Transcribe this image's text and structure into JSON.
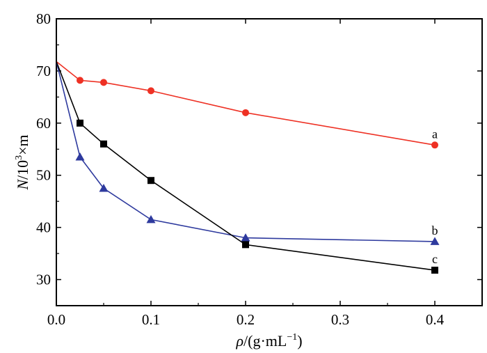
{
  "chart_data": {
    "type": "line",
    "xlabel": {
      "var": "ρ",
      "unit": "/(g·mL",
      "sup": "−1",
      "close": ")"
    },
    "ylabel": {
      "var": "N",
      "unit": "/10",
      "sup": "3",
      "rest": "×m"
    },
    "xlim": [
      0.0,
      0.45
    ],
    "ylim": [
      25,
      80
    ],
    "xticks": [
      0.0,
      0.1,
      0.2,
      0.3,
      0.4
    ],
    "xtick_labels": [
      "0.0",
      "0.1",
      "0.2",
      "0.3",
      "0.4"
    ],
    "yticks": [
      30,
      40,
      50,
      60,
      70,
      80
    ],
    "ytick_labels": [
      "30",
      "40",
      "50",
      "60",
      "70",
      "80"
    ],
    "grid": false,
    "series": [
      {
        "name": "a",
        "color": "#ee3124",
        "marker": "circle",
        "x": [
          0.0,
          0.025,
          0.05,
          0.1,
          0.2,
          0.4
        ],
        "y": [
          71.8,
          68.2,
          67.8,
          66.2,
          62.0,
          55.8
        ]
      },
      {
        "name": "b",
        "color": "#2e3a9e",
        "marker": "triangle",
        "x": [
          0.0,
          0.025,
          0.05,
          0.1,
          0.2,
          0.4
        ],
        "y": [
          71.8,
          53.5,
          47.5,
          41.5,
          38.0,
          37.3
        ]
      },
      {
        "name": "c",
        "color": "#000000",
        "marker": "square",
        "x": [
          0.0,
          0.025,
          0.05,
          0.1,
          0.2,
          0.4
        ],
        "y": [
          71.8,
          60.0,
          56.0,
          49.0,
          36.7,
          31.8
        ]
      }
    ]
  }
}
